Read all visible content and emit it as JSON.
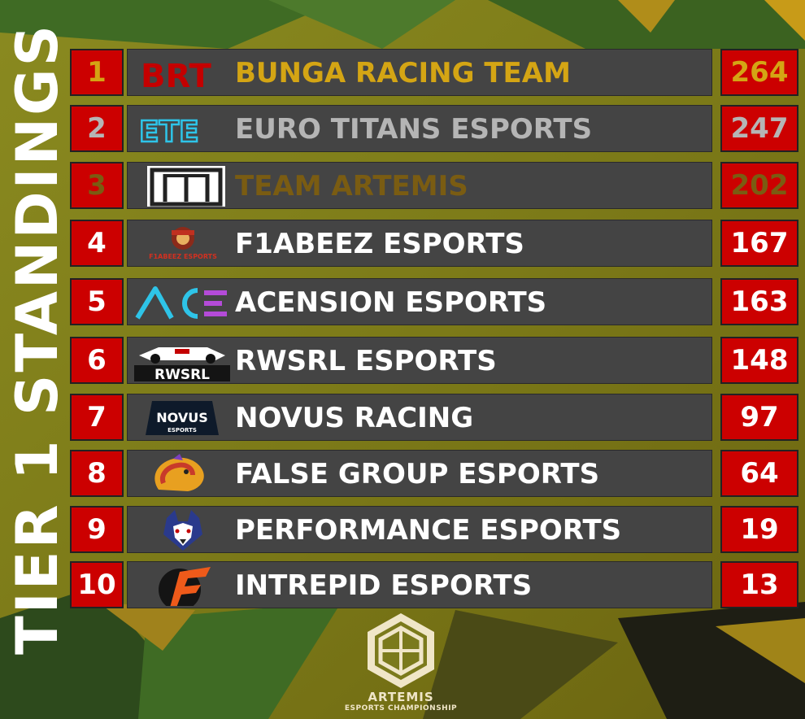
{
  "title": "TIER 1 STANDINGS",
  "standings": [
    {
      "pos": "1",
      "team": "BUNGA RACING TEAM",
      "points": "264",
      "logo": "brt-logo",
      "logo_text": "BRT",
      "tier_color": "gold"
    },
    {
      "pos": "2",
      "team": "EURO TITANS ESPORTS",
      "points": "247",
      "logo": "ete-logo",
      "logo_text": "ETE",
      "tier_color": "silver"
    },
    {
      "pos": "3",
      "team": "TEAM ARTEMIS",
      "points": "202",
      "logo": "artemis-logo",
      "logo_text": "",
      "tier_color": "bronze"
    },
    {
      "pos": "4",
      "team": "F1ABEEZ ESPORTS",
      "points": "167",
      "logo": "f1abeez-logo",
      "logo_text": "F1ABEEZ ESPORTS",
      "tier_color": "white"
    },
    {
      "pos": "5",
      "team": "ACENSION ESPORTS",
      "points": "163",
      "logo": "ace-logo",
      "logo_text": "ACE",
      "tier_color": "white"
    },
    {
      "pos": "6",
      "team": "RWSRL ESPORTS",
      "points": "148",
      "logo": "rwsrl-logo",
      "logo_text": "RWSRL",
      "tier_color": "white"
    },
    {
      "pos": "7",
      "team": "NOVUS RACING",
      "points": "97",
      "logo": "novus-logo",
      "logo_text": "NOVUS ESPORTS",
      "tier_color": "white"
    },
    {
      "pos": "8",
      "team": "FALSE GROUP ESPORTS",
      "points": "64",
      "logo": "false-group-logo",
      "logo_text": "",
      "tier_color": "white"
    },
    {
      "pos": "9",
      "team": "PERFORMANCE ESPORTS",
      "points": "19",
      "logo": "wolf-logo",
      "logo_text": "",
      "tier_color": "white"
    },
    {
      "pos": "10",
      "team": "INTREPID ESPORTS",
      "points": "13",
      "logo": "intrepid-logo",
      "logo_text": "",
      "tier_color": "white"
    }
  ],
  "footer": {
    "line1": "ARTEMIS",
    "line2": "ESPORTS CHAMPIONSHIP"
  },
  "colors": {
    "gold": "#d4a514",
    "silver": "#b5b5b5",
    "bronze": "#7a5c12",
    "white": "#ffffff",
    "accent_red": "#cc0000",
    "row_bg": "#444444"
  }
}
